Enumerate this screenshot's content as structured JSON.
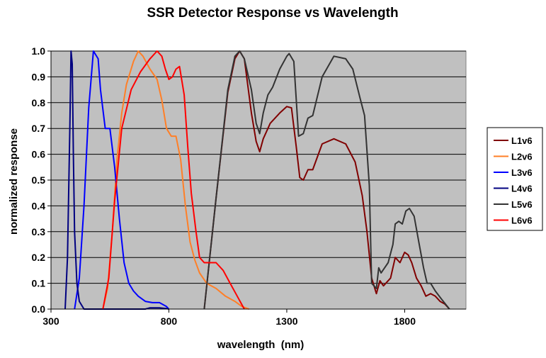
{
  "chart_data": {
    "type": "line",
    "title": "SSR Detector Response vs Wavelength",
    "xlabel": "wavelength  (nm)",
    "ylabel": "normalized response",
    "xlim": [
      300,
      2060
    ],
    "ylim": [
      0,
      1
    ],
    "x_ticks": [
      300,
      800,
      1300,
      1800
    ],
    "y_ticks": [
      0.0,
      0.1,
      0.2,
      0.3,
      0.4,
      0.5,
      0.6,
      0.7,
      0.8,
      0.9,
      1.0
    ],
    "y_tick_labels": [
      "0.0",
      "0.1",
      "0.2",
      "0.3",
      "0.4",
      "0.5",
      "0.6",
      "0.7",
      "0.8",
      "0.9",
      "1.0"
    ],
    "grid": {
      "horizontal": true,
      "vertical": false
    },
    "plot_background": "#c0c0c0",
    "legend_position": "right",
    "series": [
      {
        "name": "L1v6",
        "color": "#800000",
        "x": [
          950,
          1000,
          1050,
          1080,
          1100,
          1120,
          1150,
          1170,
          1185,
          1200,
          1230,
          1270,
          1300,
          1320,
          1340,
          1355,
          1370,
          1390,
          1410,
          1450,
          1500,
          1550,
          1590,
          1620,
          1640,
          1660,
          1680,
          1695,
          1710,
          1720,
          1740,
          1760,
          1780,
          1800,
          1815,
          1830,
          1850,
          1870,
          1890,
          1910,
          1930,
          1950,
          1970,
          1990
        ],
        "y": [
          0.0,
          0.43,
          0.84,
          0.97,
          1.0,
          0.97,
          0.76,
          0.65,
          0.61,
          0.66,
          0.72,
          0.76,
          0.785,
          0.78,
          0.63,
          0.51,
          0.5,
          0.54,
          0.54,
          0.64,
          0.66,
          0.64,
          0.57,
          0.44,
          0.3,
          0.12,
          0.06,
          0.11,
          0.09,
          0.1,
          0.12,
          0.2,
          0.18,
          0.22,
          0.21,
          0.18,
          0.12,
          0.09,
          0.05,
          0.06,
          0.05,
          0.03,
          0.02,
          0.0
        ]
      },
      {
        "name": "L2v6",
        "color": "#ff7f27",
        "x": [
          520,
          540,
          560,
          580,
          600,
          620,
          650,
          670,
          690,
          720,
          750,
          770,
          790,
          810,
          830,
          850,
          870,
          890,
          910,
          930,
          960,
          1000,
          1040,
          1080,
          1110,
          1140
        ],
        "y": [
          0.0,
          0.08,
          0.3,
          0.58,
          0.76,
          0.87,
          0.96,
          1.0,
          0.98,
          0.93,
          0.89,
          0.81,
          0.7,
          0.67,
          0.67,
          0.58,
          0.4,
          0.26,
          0.19,
          0.14,
          0.1,
          0.08,
          0.05,
          0.03,
          0.01,
          0.0
        ]
      },
      {
        "name": "L3v6",
        "color": "#0000ff",
        "x": [
          400,
          420,
          440,
          460,
          480,
          500,
          510,
          530,
          550,
          570,
          590,
          610,
          630,
          650,
          670,
          700,
          730,
          760,
          790,
          800
        ],
        "y": [
          0.0,
          0.12,
          0.4,
          0.78,
          1.0,
          0.97,
          0.85,
          0.7,
          0.7,
          0.55,
          0.35,
          0.18,
          0.1,
          0.07,
          0.05,
          0.03,
          0.025,
          0.025,
          0.01,
          0.0
        ]
      },
      {
        "name": "L4v6",
        "color": "#000080",
        "x": [
          360,
          370,
          380,
          385,
          390,
          395,
          400,
          410,
          420,
          440,
          460,
          700,
          720,
          760,
          790,
          800
        ],
        "y": [
          0.0,
          0.2,
          0.7,
          1.0,
          0.95,
          0.6,
          0.3,
          0.1,
          0.03,
          0.0,
          0.0,
          0.0,
          0.005,
          0.005,
          0.002,
          0.0
        ]
      },
      {
        "name": "L5v6",
        "color": "#333333",
        "x": [
          950,
          1000,
          1050,
          1080,
          1100,
          1120,
          1150,
          1170,
          1185,
          1200,
          1220,
          1240,
          1270,
          1300,
          1310,
          1330,
          1350,
          1370,
          1390,
          1410,
          1450,
          1500,
          1550,
          1580,
          1610,
          1630,
          1650,
          1660,
          1680,
          1690,
          1700,
          1715,
          1730,
          1750,
          1760,
          1775,
          1790,
          1805,
          1820,
          1840,
          1860,
          1880,
          1895,
          1910,
          1930,
          1955,
          1990
        ],
        "y": [
          0.0,
          0.43,
          0.85,
          0.98,
          1.0,
          0.97,
          0.85,
          0.72,
          0.68,
          0.76,
          0.83,
          0.86,
          0.93,
          0.98,
          0.99,
          0.96,
          0.67,
          0.68,
          0.74,
          0.75,
          0.9,
          0.98,
          0.97,
          0.93,
          0.82,
          0.75,
          0.48,
          0.1,
          0.08,
          0.16,
          0.14,
          0.16,
          0.18,
          0.25,
          0.33,
          0.34,
          0.33,
          0.38,
          0.39,
          0.36,
          0.26,
          0.16,
          0.1,
          0.1,
          0.07,
          0.04,
          0.0
        ]
      },
      {
        "name": "L6v6",
        "color": "#ff0000",
        "x": [
          520,
          545,
          570,
          600,
          640,
          680,
          720,
          750,
          770,
          785,
          800,
          815,
          830,
          845,
          865,
          880,
          895,
          915,
          930,
          950,
          970,
          1000,
          1030,
          1060,
          1090,
          1120
        ],
        "y": [
          0.0,
          0.12,
          0.42,
          0.7,
          0.85,
          0.92,
          0.97,
          1.0,
          0.98,
          0.93,
          0.89,
          0.9,
          0.93,
          0.94,
          0.83,
          0.63,
          0.45,
          0.3,
          0.2,
          0.18,
          0.18,
          0.18,
          0.15,
          0.1,
          0.05,
          0.0
        ]
      }
    ]
  }
}
